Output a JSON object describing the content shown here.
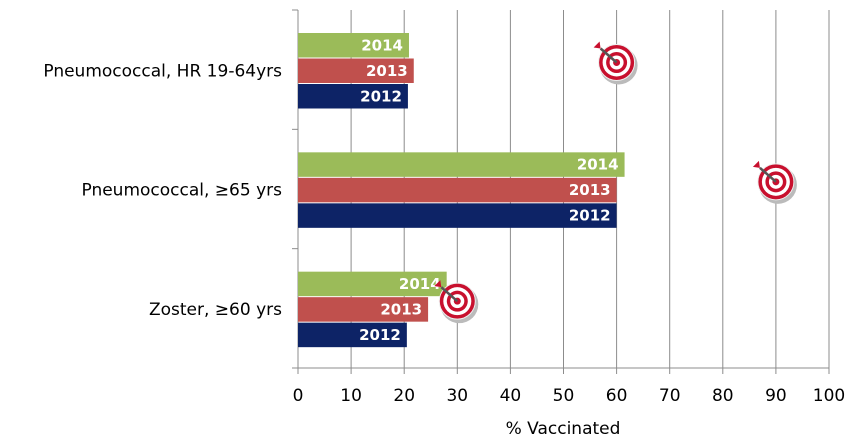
{
  "chart_data": {
    "type": "bar",
    "orientation": "horizontal",
    "categories": [
      "Pneumococcal, HR 19-64yrs",
      "Pneumococcal, ≥65 yrs",
      "Zoster, ≥60 yrs"
    ],
    "series": [
      {
        "name": "2014",
        "color": "#9bbb59",
        "values": [
          20.9,
          61.5,
          28
        ]
      },
      {
        "name": "2013",
        "color": "#c0504d",
        "values": [
          21.8,
          60,
          24.5
        ]
      },
      {
        "name": "2012",
        "color": "#0d2366",
        "values": [
          20.7,
          60,
          20.5
        ]
      }
    ],
    "targets": [
      60,
      90,
      30
    ],
    "xlabel": "% Vaccinated",
    "xlim": [
      0,
      100
    ],
    "xticks": [
      0,
      10,
      20,
      30,
      40,
      50,
      60,
      70,
      80,
      90,
      100
    ],
    "grid": true
  }
}
